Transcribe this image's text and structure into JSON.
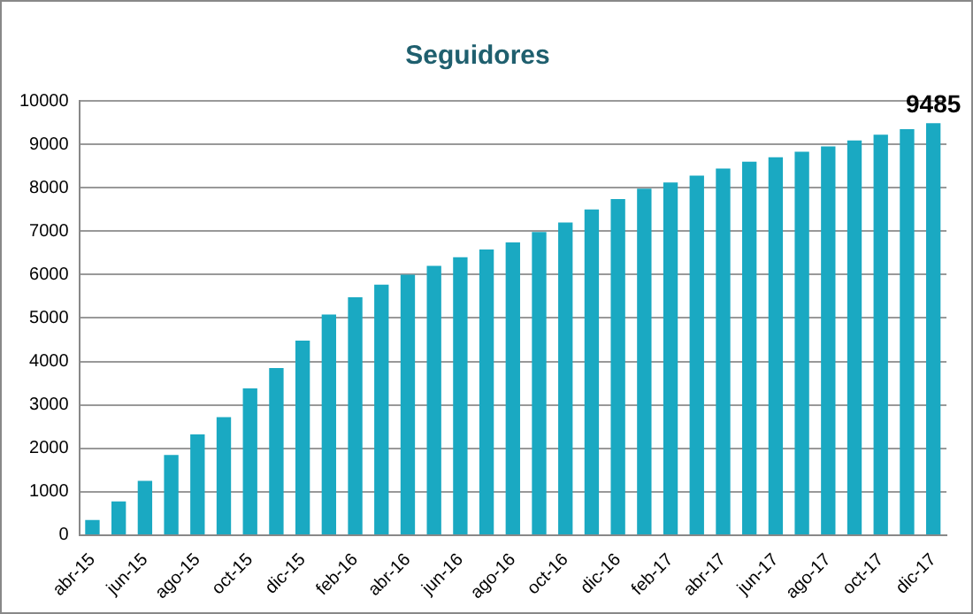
{
  "chart_data": {
    "type": "bar",
    "title": "Seguidores",
    "categories": [
      "abr-15",
      null,
      "jun-15",
      null,
      "ago-15",
      null,
      "oct-15",
      null,
      "dic-15",
      null,
      "feb-16",
      null,
      "abr-16",
      null,
      "jun-16",
      null,
      "ago-16",
      null,
      "oct-16",
      null,
      "dic-16",
      null,
      "feb-17",
      null,
      "abr-17",
      null,
      "jun-17",
      null,
      "ago-17",
      null,
      "oct-17",
      null,
      "dic-17"
    ],
    "values": [
      350,
      780,
      1250,
      1850,
      2320,
      2720,
      3380,
      3850,
      4480,
      5080,
      5480,
      5770,
      6000,
      6200,
      6400,
      6580,
      6740,
      6980,
      7200,
      7500,
      7740,
      7980,
      8120,
      8280,
      8440,
      8600,
      8700,
      8830,
      8950,
      9090,
      9220,
      9350,
      9485
    ],
    "value_labels": [
      null,
      null,
      null,
      null,
      null,
      null,
      null,
      null,
      null,
      null,
      null,
      null,
      null,
      null,
      null,
      null,
      null,
      null,
      null,
      null,
      null,
      null,
      null,
      null,
      null,
      null,
      null,
      null,
      null,
      null,
      null,
      null,
      "9485"
    ],
    "color": "#1aa9c2",
    "ylim": [
      0,
      10000
    ],
    "yticks": [
      0,
      1000,
      2000,
      3000,
      4000,
      5000,
      6000,
      7000,
      8000,
      9000,
      10000
    ],
    "grid": "y"
  }
}
